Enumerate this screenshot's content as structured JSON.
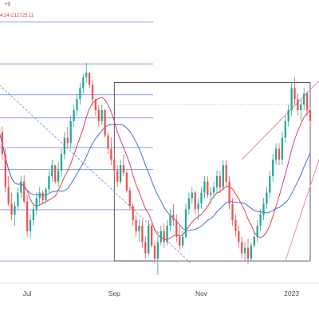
{
  "header": {
    "line1": "+3",
    "line2_prefix": "4.24",
    "line2_value": "C12725.11"
  },
  "chart_data": {
    "type": "candlestick",
    "title": "",
    "x_tick_labels": [
      {
        "label": "Jul",
        "index": 9
      },
      {
        "label": "Sep",
        "index": 37
      },
      {
        "label": "Nov",
        "index": 65
      },
      {
        "label": "2023",
        "index": 94
      }
    ],
    "ylim": [
      11100,
      13650
    ],
    "horizontal_levels": [
      13450,
      13070,
      12790,
      12580,
      12310,
      12110,
      11745,
      11280
    ],
    "candles": [
      [
        12480,
        12560,
        12380,
        12450
      ],
      [
        12450,
        12500,
        12200,
        12250
      ],
      [
        12250,
        12300,
        11900,
        11950
      ],
      [
        11950,
        12050,
        11780,
        11800
      ],
      [
        11800,
        11900,
        11650,
        11700
      ],
      [
        11700,
        11820,
        11600,
        11780
      ],
      [
        11780,
        11950,
        11750,
        11900
      ],
      [
        11900,
        12050,
        11850,
        12000
      ],
      [
        12000,
        12060,
        11800,
        11820
      ],
      [
        11820,
        11880,
        11500,
        11550
      ],
      [
        11550,
        11700,
        11480,
        11650
      ],
      [
        11650,
        11800,
        11600,
        11750
      ],
      [
        11750,
        11900,
        11700,
        11850
      ],
      [
        11850,
        11950,
        11780,
        11900
      ],
      [
        11900,
        11920,
        11800,
        11830
      ],
      [
        11830,
        11950,
        11800,
        11930
      ],
      [
        11930,
        12100,
        11900,
        12050
      ],
      [
        12050,
        12200,
        12000,
        12150
      ],
      [
        12150,
        12150,
        11980,
        12000
      ],
      [
        12000,
        12180,
        11950,
        12100
      ],
      [
        12100,
        12300,
        12050,
        12250
      ],
      [
        12250,
        12450,
        12200,
        12400
      ],
      [
        12400,
        12500,
        12300,
        12350
      ],
      [
        12350,
        12600,
        12300,
        12550
      ],
      [
        12550,
        12700,
        12500,
        12650
      ],
      [
        12650,
        12800,
        12600,
        12750
      ],
      [
        12750,
        12900,
        12700,
        12850
      ],
      [
        12850,
        12980,
        12800,
        12950
      ],
      [
        12950,
        13080,
        12900,
        12990
      ],
      [
        12990,
        12990,
        12850,
        12880
      ],
      [
        12880,
        12920,
        12700,
        12750
      ],
      [
        12750,
        12750,
        12600,
        12650
      ],
      [
        12650,
        12700,
        12500,
        12550
      ],
      [
        12550,
        12700,
        12520,
        12650
      ],
      [
        12650,
        12660,
        12400,
        12420
      ],
      [
        12420,
        12450,
        12250,
        12300
      ],
      [
        12300,
        12400,
        12150,
        12200
      ],
      [
        12200,
        12250,
        12050,
        12100
      ],
      [
        12100,
        12150,
        11950,
        12000
      ],
      [
        12000,
        12200,
        11980,
        12150
      ],
      [
        12150,
        12250,
        12050,
        12080
      ],
      [
        12080,
        12100,
        11900,
        11920
      ],
      [
        11920,
        11950,
        11750,
        11780
      ],
      [
        11780,
        11800,
        11600,
        11650
      ],
      [
        11650,
        11700,
        11500,
        11550
      ],
      [
        11550,
        11650,
        11450,
        11600
      ],
      [
        11600,
        11650,
        11400,
        11450
      ],
      [
        11450,
        11500,
        11300,
        11350
      ],
      [
        11350,
        11650,
        11320,
        11600
      ],
      [
        11600,
        11620,
        11400,
        11420
      ],
      [
        11420,
        11450,
        11250,
        11300
      ],
      [
        11300,
        11500,
        11150,
        11450
      ],
      [
        11450,
        11600,
        11420,
        11550
      ],
      [
        11550,
        11620,
        11400,
        11450
      ],
      [
        11450,
        11650,
        11420,
        11600
      ],
      [
        11600,
        11750,
        11550,
        11700
      ],
      [
        11700,
        11800,
        11600,
        11650
      ],
      [
        11650,
        11700,
        11450,
        11500
      ],
      [
        11500,
        11600,
        11380,
        11420
      ],
      [
        11420,
        11550,
        11400,
        11500
      ],
      [
        11500,
        11800,
        11480,
        11750
      ],
      [
        11750,
        11900,
        11700,
        11850
      ],
      [
        11850,
        11950,
        11800,
        11900
      ],
      [
        11900,
        11920,
        11700,
        11750
      ],
      [
        11750,
        11850,
        11650,
        11800
      ],
      [
        11800,
        11950,
        11750,
        11900
      ],
      [
        11900,
        12050,
        11850,
        12000
      ],
      [
        12000,
        12050,
        11850,
        11880
      ],
      [
        11880,
        11950,
        11800,
        11900
      ],
      [
        11900,
        12000,
        11850,
        11950
      ],
      [
        11950,
        12100,
        11900,
        12050
      ],
      [
        12050,
        12100,
        11900,
        11950
      ],
      [
        11950,
        12200,
        11920,
        12150
      ],
      [
        12150,
        12200,
        11950,
        12000
      ],
      [
        12000,
        12050,
        11750,
        11800
      ],
      [
        11800,
        11850,
        11600,
        11650
      ],
      [
        11650,
        11700,
        11500,
        11550
      ],
      [
        11550,
        11600,
        11400,
        11450
      ],
      [
        11450,
        11500,
        11300,
        11350
      ],
      [
        11350,
        11450,
        11280,
        11400
      ],
      [
        11400,
        11480,
        11250,
        11300
      ],
      [
        11300,
        11450,
        11280,
        11420
      ],
      [
        11420,
        11550,
        11400,
        11500
      ],
      [
        11500,
        11650,
        11450,
        11600
      ],
      [
        11600,
        11750,
        11550,
        11700
      ],
      [
        11700,
        11850,
        11650,
        11800
      ],
      [
        11800,
        11950,
        11750,
        11900
      ],
      [
        11900,
        12100,
        11850,
        12050
      ],
      [
        12050,
        12250,
        12000,
        12200
      ],
      [
        12200,
        12350,
        12150,
        12300
      ],
      [
        12300,
        12350,
        12150,
        12200
      ],
      [
        12200,
        12450,
        12150,
        12400
      ],
      [
        12400,
        12600,
        12350,
        12550
      ],
      [
        12550,
        12700,
        12500,
        12650
      ],
      [
        12650,
        12900,
        12600,
        12850
      ],
      [
        12850,
        12950,
        12700,
        12750
      ],
      [
        12750,
        12800,
        12600,
        12650
      ],
      [
        12650,
        12750,
        12550,
        12700
      ],
      [
        12700,
        12850,
        12650,
        12800
      ],
      [
        12800,
        12820,
        12600,
        12650
      ],
      [
        12650,
        12680,
        12500,
        12550
      ]
    ],
    "moving_averages": [
      {
        "color": "#e0415c",
        "period": 10
      },
      {
        "color": "#4a6ee0",
        "period": 20
      }
    ],
    "annotations": {
      "range_box": {
        "start_index": 37,
        "end_index": 100,
        "top": 12900,
        "bottom": 11280
      },
      "dotted_level": {
        "start_index": 37,
        "end_index": 100,
        "value": 12700
      },
      "diagonal_dashed": {
        "start_index": 0,
        "start_value": 12880,
        "end_index": 62,
        "end_value": 11250
      },
      "upper_channel": {
        "start_index": 78,
        "start_value": 12200,
        "end_index": 104,
        "end_value": 12950
      },
      "lower_channel": {
        "start_index": 92,
        "start_value": 11280,
        "end_index": 104,
        "end_value": 12300
      }
    },
    "colors": {
      "up": "#26a69a",
      "down": "#ef5350",
      "level_line": "#8a9fe6",
      "box": "#333333",
      "channel": "#e58aa0",
      "diagonal": "#7d8fe6",
      "dotted": "#e88a99"
    }
  }
}
